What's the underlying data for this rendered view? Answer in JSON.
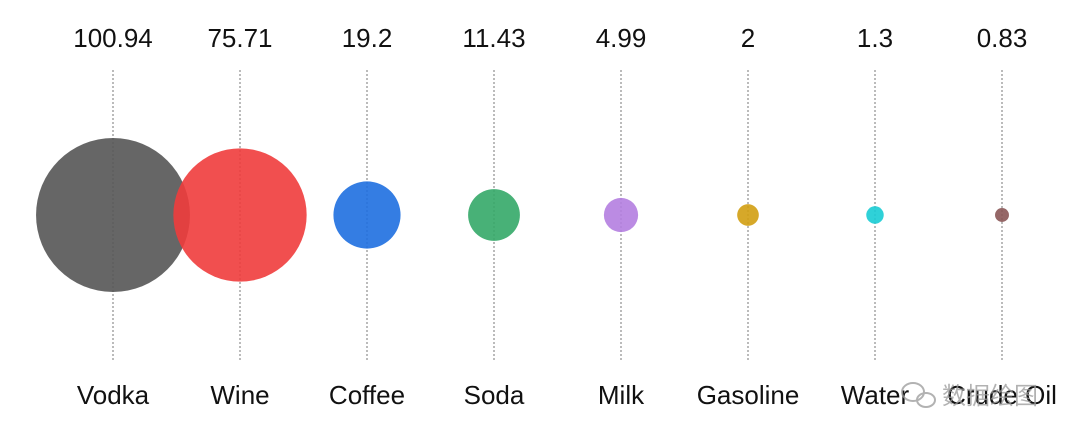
{
  "chart_data": {
    "type": "bubble",
    "categories": [
      "Vodka",
      "Wine",
      "Coffee",
      "Soda",
      "Milk",
      "Gasoline",
      "Water",
      "Crude Oil"
    ],
    "values": [
      100.94,
      75.71,
      19.2,
      11.43,
      4.99,
      2,
      1.3,
      0.83
    ],
    "colors": [
      "#555555",
      "#f03c3c",
      "#1e6fe0",
      "#34a868",
      "#b47ee0",
      "#d19e12",
      "#18ccd4",
      "#8a5656"
    ],
    "grid": true
  },
  "watermark": "数据绘图"
}
